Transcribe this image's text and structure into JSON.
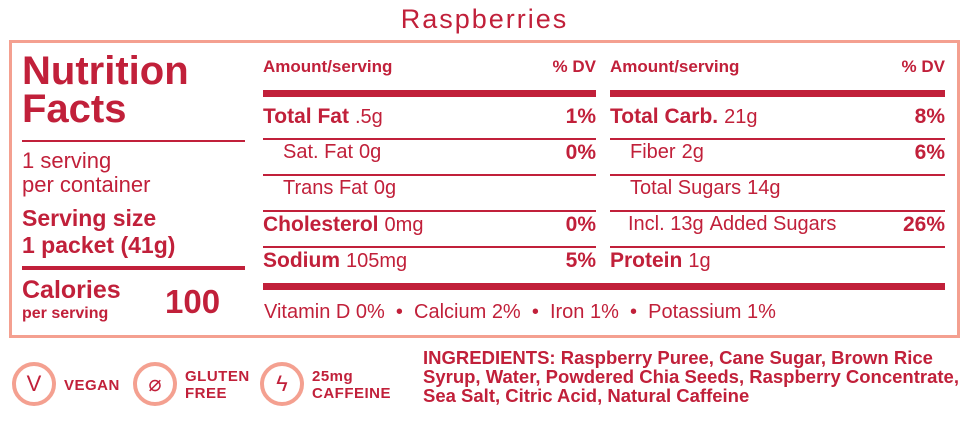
{
  "title": "Raspberries",
  "left": {
    "heading1": "Nutrition",
    "heading2": "Facts",
    "servings1": "1 serving",
    "servings2": "per container",
    "serving_size_label": "Serving size",
    "serving_size_value": "1 packet (41g)",
    "calories_label": "Calories",
    "calories_sub": "per serving",
    "calories_value": "100"
  },
  "headers": {
    "amount": "Amount/serving",
    "dv": "% DV"
  },
  "col1": [
    {
      "name": "Total Fat",
      "amount": ".5g",
      "dv": "1%",
      "bold": true
    },
    {
      "name": "Sat. Fat",
      "amount": "0g",
      "dv": "0%",
      "bold": false
    },
    {
      "name": "Trans Fat",
      "amount": "0g",
      "dv": "",
      "bold": false
    },
    {
      "name": "Cholesterol",
      "amount": "0mg",
      "dv": "0%",
      "bold": true
    },
    {
      "name": "Sodium",
      "amount": "105mg",
      "dv": "5%",
      "bold": true
    }
  ],
  "col2": [
    {
      "name": "Total Carb.",
      "amount": "21g",
      "dv": "8%",
      "bold": true
    },
    {
      "name": "Fiber",
      "amount": "2g",
      "dv": "6%",
      "bold": false
    },
    {
      "name": "Total Sugars",
      "amount": "14g",
      "dv": "",
      "bold": false
    },
    {
      "name": "Incl. 13g",
      "amount": "Added Sugars",
      "dv": "26%",
      "bold": false
    },
    {
      "name": "Protein",
      "amount": "1g",
      "dv": "",
      "bold": true
    }
  ],
  "vitamins": "Vitamin D 0%  •  Calcium 2%  •  Iron 1%  •  Potassium 1%",
  "badges": [
    {
      "icon": "vegan-icon",
      "line1": "VEGAN",
      "line2": ""
    },
    {
      "icon": "gluten-free-icon",
      "line1": "GLUTEN",
      "line2": "FREE"
    },
    {
      "icon": "caffeine-bolt-icon",
      "line1": "25mg",
      "line2": "CAFFEINE"
    }
  ],
  "ingredients": {
    "label": "INGREDIENTS:",
    "text": "Raspberry Puree, Cane Sugar, Brown Rice Syrup, Water, Powdered Chia Seeds, Raspberry Concentrate, Sea Salt, Citric Acid, Natural Caffeine"
  },
  "colors": {
    "primary": "#c1203a",
    "accent": "#f4a090"
  }
}
